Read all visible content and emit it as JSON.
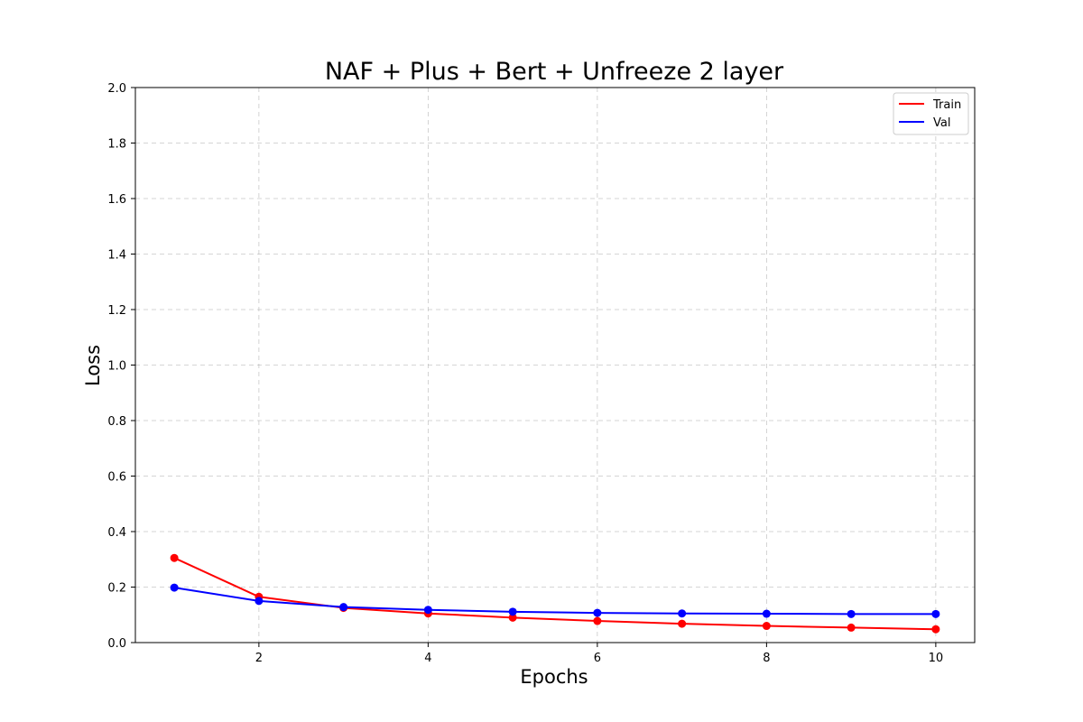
{
  "chart_data": {
    "type": "line",
    "title": "NAF + Plus + Bert + Unfreeze 2 layer",
    "xlabel": "Epochs",
    "ylabel": "Loss",
    "x": [
      1,
      2,
      3,
      4,
      5,
      6,
      7,
      8,
      9,
      10
    ],
    "xlim": [
      0.54,
      10.46
    ],
    "ylim": [
      0,
      2.0
    ],
    "xticks": [
      2,
      4,
      6,
      8,
      10
    ],
    "xtick_labels": [
      "2",
      "4",
      "6",
      "8",
      "10"
    ],
    "yticks": [
      0,
      0.2,
      0.4,
      0.6,
      0.8,
      1.0,
      1.2,
      1.4,
      1.6,
      1.8,
      2.0
    ],
    "ytick_labels": [
      "0.0",
      "0.2",
      "0.4",
      "0.6",
      "0.8",
      "1.0",
      "1.2",
      "1.4",
      "1.6",
      "1.8",
      "2.0"
    ],
    "grid": true,
    "legend_position": "top-right",
    "series": [
      {
        "name": "Train",
        "color": "#ff0000",
        "marker": "circle",
        "values": [
          0.305,
          0.165,
          0.125,
          0.105,
          0.09,
          0.078,
          0.068,
          0.06,
          0.054,
          0.048
        ]
      },
      {
        "name": "Val",
        "color": "#0000ff",
        "marker": "circle",
        "values": [
          0.198,
          0.15,
          0.128,
          0.118,
          0.111,
          0.107,
          0.105,
          0.104,
          0.103,
          0.103
        ]
      }
    ]
  }
}
